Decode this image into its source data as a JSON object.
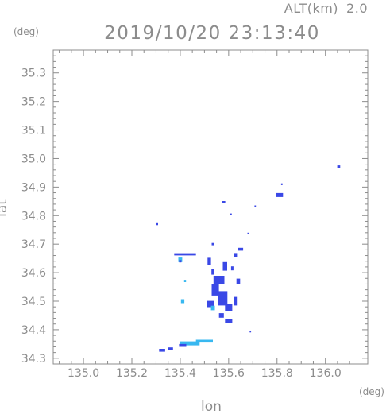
{
  "header": {
    "altitude_label": "ALT(km)",
    "altitude_value": "2.0",
    "timestamp": "2019/10/20 23:13:40"
  },
  "colors": {
    "axis": "#8c8c8c",
    "echo_strong": "#3a48e6",
    "echo_weak": "#38b8f0",
    "background": "#ffffff"
  },
  "chart_data": {
    "type": "heatmap",
    "title": "2019/10/20 23:13:40",
    "xlabel": "lon",
    "ylabel": "lat",
    "x_unit": "(deg)",
    "y_unit": "(deg)",
    "xlim": [
      134.875,
      136.175
    ],
    "ylim": [
      34.28,
      35.38
    ],
    "xticks": [
      135.0,
      135.2,
      135.4,
      135.6,
      135.8,
      136.0
    ],
    "xtick_labels": [
      "135.0",
      "135.2",
      "135.4",
      "135.6",
      "135.8",
      "136.0"
    ],
    "yticks": [
      34.3,
      34.4,
      34.5,
      34.6,
      34.7,
      34.8,
      34.9,
      35.0,
      35.1,
      35.2,
      35.3
    ],
    "ytick_labels": [
      "34.3",
      "34.4",
      "34.5",
      "34.6",
      "34.7",
      "34.8",
      "34.9",
      "35.0",
      "35.1",
      "35.2",
      "35.3"
    ],
    "grid": false,
    "cells": [
      {
        "lon": 136.055,
        "lat": 34.972,
        "w": 0.012,
        "h": 0.008,
        "level": "strong"
      },
      {
        "lon": 135.82,
        "lat": 34.91,
        "w": 0.006,
        "h": 0.006,
        "level": "strong"
      },
      {
        "lon": 135.81,
        "lat": 34.872,
        "w": 0.03,
        "h": 0.014,
        "level": "strong"
      },
      {
        "lon": 135.58,
        "lat": 34.848,
        "w": 0.012,
        "h": 0.006,
        "level": "strong"
      },
      {
        "lon": 135.71,
        "lat": 34.833,
        "w": 0.006,
        "h": 0.005,
        "level": "strong"
      },
      {
        "lon": 135.61,
        "lat": 34.805,
        "w": 0.006,
        "h": 0.005,
        "level": "strong"
      },
      {
        "lon": 135.305,
        "lat": 34.77,
        "w": 0.007,
        "h": 0.007,
        "level": "strong"
      },
      {
        "lon": 135.68,
        "lat": 34.738,
        "w": 0.005,
        "h": 0.004,
        "level": "strong"
      },
      {
        "lon": 135.535,
        "lat": 34.7,
        "w": 0.01,
        "h": 0.008,
        "level": "strong"
      },
      {
        "lon": 135.65,
        "lat": 34.682,
        "w": 0.02,
        "h": 0.01,
        "level": "strong"
      },
      {
        "lon": 135.63,
        "lat": 34.66,
        "w": 0.016,
        "h": 0.012,
        "level": "strong"
      },
      {
        "lon": 135.42,
        "lat": 34.663,
        "w": 0.09,
        "h": 0.005,
        "level": "strong"
      },
      {
        "lon": 135.4,
        "lat": 34.645,
        "w": 0.016,
        "h": 0.016,
        "level": "weak"
      },
      {
        "lon": 135.4,
        "lat": 34.64,
        "w": 0.01,
        "h": 0.008,
        "level": "strong"
      },
      {
        "lon": 135.52,
        "lat": 34.64,
        "w": 0.014,
        "h": 0.024,
        "level": "strong"
      },
      {
        "lon": 135.585,
        "lat": 34.622,
        "w": 0.018,
        "h": 0.03,
        "level": "strong"
      },
      {
        "lon": 135.615,
        "lat": 34.615,
        "w": 0.01,
        "h": 0.014,
        "level": "strong"
      },
      {
        "lon": 135.535,
        "lat": 34.603,
        "w": 0.012,
        "h": 0.02,
        "level": "strong"
      },
      {
        "lon": 135.64,
        "lat": 34.57,
        "w": 0.015,
        "h": 0.018,
        "level": "strong"
      },
      {
        "lon": 135.56,
        "lat": 34.575,
        "w": 0.045,
        "h": 0.028,
        "level": "strong"
      },
      {
        "lon": 135.545,
        "lat": 34.54,
        "w": 0.03,
        "h": 0.04,
        "level": "strong"
      },
      {
        "lon": 135.575,
        "lat": 34.51,
        "w": 0.04,
        "h": 0.05,
        "level": "strong"
      },
      {
        "lon": 135.525,
        "lat": 34.49,
        "w": 0.03,
        "h": 0.022,
        "level": "strong"
      },
      {
        "lon": 135.6,
        "lat": 34.478,
        "w": 0.03,
        "h": 0.025,
        "level": "strong"
      },
      {
        "lon": 135.535,
        "lat": 34.476,
        "w": 0.016,
        "h": 0.016,
        "level": "weak"
      },
      {
        "lon": 135.63,
        "lat": 34.5,
        "w": 0.014,
        "h": 0.03,
        "level": "strong"
      },
      {
        "lon": 135.57,
        "lat": 34.45,
        "w": 0.02,
        "h": 0.016,
        "level": "strong"
      },
      {
        "lon": 135.6,
        "lat": 34.43,
        "w": 0.03,
        "h": 0.014,
        "level": "strong"
      },
      {
        "lon": 135.41,
        "lat": 34.5,
        "w": 0.014,
        "h": 0.014,
        "level": "weak"
      },
      {
        "lon": 135.42,
        "lat": 34.571,
        "w": 0.008,
        "h": 0.008,
        "level": "weak"
      },
      {
        "lon": 135.69,
        "lat": 34.393,
        "w": 0.006,
        "h": 0.005,
        "level": "strong"
      },
      {
        "lon": 135.44,
        "lat": 34.352,
        "w": 0.08,
        "h": 0.014,
        "level": "weak"
      },
      {
        "lon": 135.5,
        "lat": 34.36,
        "w": 0.07,
        "h": 0.01,
        "level": "weak"
      },
      {
        "lon": 135.41,
        "lat": 34.345,
        "w": 0.03,
        "h": 0.01,
        "level": "strong"
      },
      {
        "lon": 135.36,
        "lat": 34.334,
        "w": 0.02,
        "h": 0.008,
        "level": "strong"
      },
      {
        "lon": 135.325,
        "lat": 34.328,
        "w": 0.025,
        "h": 0.01,
        "level": "strong"
      }
    ]
  }
}
